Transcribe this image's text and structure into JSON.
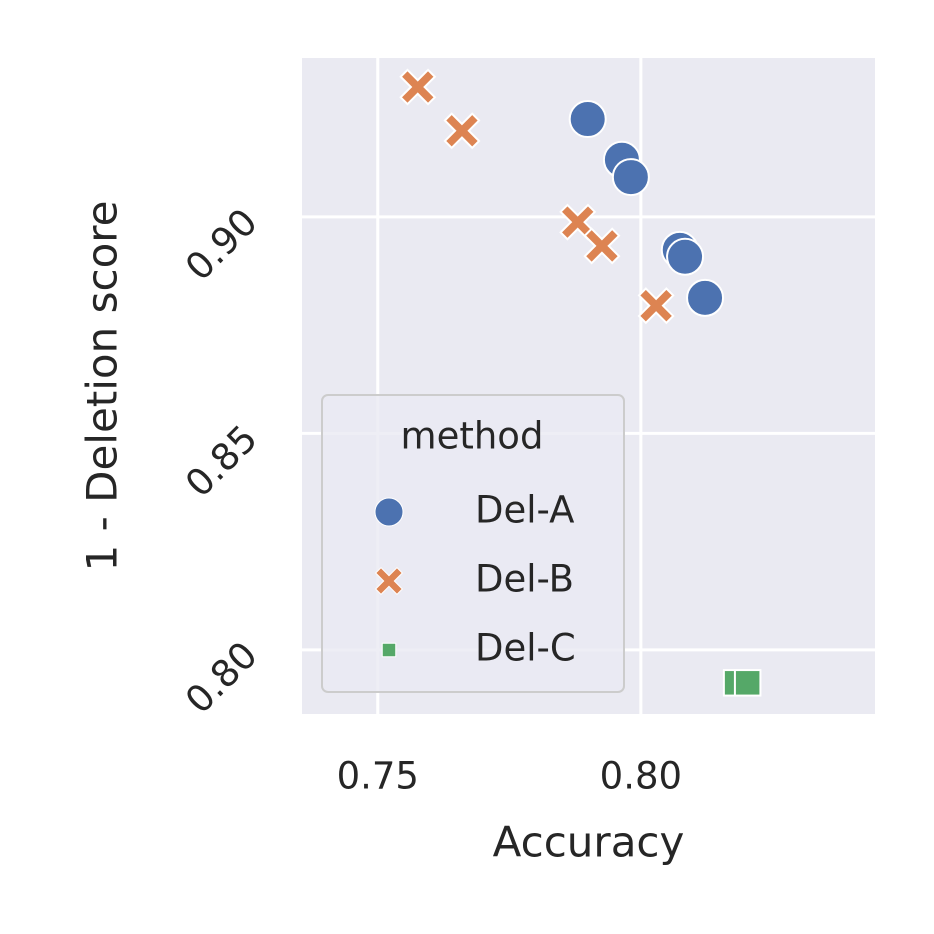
{
  "chart_data": {
    "type": "scatter",
    "xlabel": "Accuracy",
    "ylabel": "1 - Deletion score",
    "xlim": [
      0.7356,
      0.8445
    ],
    "ylim": [
      0.7852,
      0.9367
    ],
    "xticks": [
      0.75,
      0.8
    ],
    "yticks": [
      0.8,
      0.85,
      0.9
    ],
    "xtick_labels": [
      "0.75",
      "0.80"
    ],
    "ytick_labels": [
      "0.80",
      "0.85",
      "0.90"
    ],
    "grid": true,
    "legend_title": "method",
    "legend_loc": "lower left",
    "series": [
      {
        "name": "Del-A",
        "color": "#4c72b0",
        "marker": "circle",
        "x": [
          0.7899,
          0.7964,
          0.7981,
          0.8074,
          0.8084,
          0.8122
        ],
        "values": [
          0.9226,
          0.9132,
          0.9092,
          0.8924,
          0.8908,
          0.8813
        ]
      },
      {
        "name": "Del-B",
        "color": "#dd8452",
        "marker": "x",
        "x": [
          0.7576,
          0.766,
          0.788,
          0.7926,
          0.8029
        ],
        "values": [
          0.93,
          0.9199,
          0.8988,
          0.8933,
          0.8795
        ]
      },
      {
        "name": "Del-C",
        "color": "#55a868",
        "marker": "square",
        "x": [
          0.8182,
          0.8203
        ],
        "values": [
          0.7924,
          0.7924
        ]
      }
    ]
  }
}
